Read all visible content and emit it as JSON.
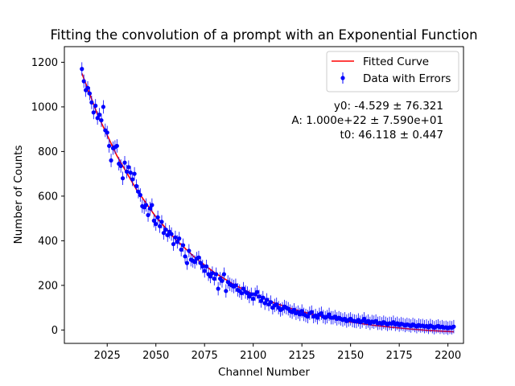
{
  "chart_data": {
    "type": "scatter",
    "title": "Fitting the convolution of a prompt with an Exponential Function",
    "xlabel": "Channel Number",
    "ylabel": "Number of Counts",
    "xlim": [
      2003,
      2208
    ],
    "ylim": [
      -60,
      1270
    ],
    "xticks": [
      2025,
      2050,
      2075,
      2100,
      2125,
      2150,
      2175,
      2200
    ],
    "yticks": [
      0,
      200,
      400,
      600,
      800,
      1000,
      1200
    ],
    "grid": false,
    "legend_position": "top-right",
    "colors": {
      "fit": "#ff0000",
      "data": "#0000ff",
      "errorbar": "#0000ff"
    },
    "annotations": [
      "y0: -4.529 ± 76.321",
      "A: 1.000e+22 ± 7.590e+01",
      "t0: 46.118 ± 0.447"
    ],
    "series": [
      {
        "name": "Fitted Curve",
        "kind": "line",
        "x": [
          2012,
          2020,
          2030,
          2040,
          2050,
          2060,
          2070,
          2080,
          2090,
          2100,
          2110,
          2120,
          2130,
          2140,
          2150,
          2160,
          2170,
          2180,
          2190,
          2203
        ],
        "y": [
          1150,
          966,
          781,
          630,
          507,
          407,
          325,
          258,
          204,
          160,
          124,
          95,
          71,
          52,
          36,
          23,
          13,
          5,
          -2,
          -8
        ]
      },
      {
        "name": "Data with Errors",
        "kind": "errorbar",
        "x": [
          2012,
          2013,
          2014,
          2015,
          2016,
          2017,
          2018,
          2019,
          2020,
          2021,
          2022,
          2023,
          2024,
          2025,
          2026,
          2027,
          2028,
          2029,
          2030,
          2031,
          2032,
          2033,
          2034,
          2035,
          2036,
          2037,
          2038,
          2039,
          2040,
          2041,
          2042,
          2043,
          2044,
          2045,
          2046,
          2047,
          2048,
          2049,
          2050,
          2051,
          2052,
          2053,
          2054,
          2055,
          2056,
          2057,
          2058,
          2059,
          2060,
          2061,
          2062,
          2063,
          2064,
          2065,
          2066,
          2067,
          2068,
          2069,
          2070,
          2071,
          2072,
          2073,
          2074,
          2075,
          2076,
          2077,
          2078,
          2079,
          2080,
          2081,
          2082,
          2083,
          2084,
          2085,
          2086,
          2087,
          2088,
          2089,
          2090,
          2091,
          2092,
          2093,
          2094,
          2095,
          2096,
          2097,
          2098,
          2099,
          2100,
          2101,
          2102,
          2103,
          2104,
          2105,
          2106,
          2107,
          2108,
          2109,
          2110,
          2111,
          2112,
          2113,
          2114,
          2115,
          2116,
          2117,
          2118,
          2119,
          2120,
          2121,
          2122,
          2123,
          2124,
          2125,
          2126,
          2127,
          2128,
          2129,
          2130,
          2131,
          2132,
          2133,
          2134,
          2135,
          2136,
          2137,
          2138,
          2139,
          2140,
          2141,
          2142,
          2143,
          2144,
          2145,
          2146,
          2147,
          2148,
          2149,
          2150,
          2151,
          2152,
          2153,
          2154,
          2155,
          2156,
          2157,
          2158,
          2159,
          2160,
          2161,
          2162,
          2163,
          2164,
          2165,
          2166,
          2167,
          2168,
          2169,
          2170,
          2171,
          2172,
          2173,
          2174,
          2175,
          2176,
          2177,
          2178,
          2179,
          2180,
          2181,
          2182,
          2183,
          2184,
          2185,
          2186,
          2187,
          2188,
          2189,
          2190,
          2191,
          2192,
          2193,
          2194,
          2195,
          2196,
          2197,
          2198,
          2199,
          2200,
          2201,
          2202,
          2203
        ],
        "y": [
          1170,
          1115,
          1075,
          1085,
          1060,
          1020,
          975,
          1005,
          950,
          965,
          940,
          1000,
          895,
          885,
          825,
          760,
          815,
          820,
          825,
          745,
          735,
          680,
          750,
          710,
          730,
          705,
          675,
          700,
          645,
          620,
          605,
          555,
          550,
          560,
          515,
          545,
          560,
          490,
          475,
          505,
          465,
          485,
          435,
          450,
          425,
          440,
          430,
          385,
          415,
          395,
          410,
          360,
          380,
          330,
          300,
          355,
          315,
          310,
          305,
          320,
          325,
          300,
          285,
          265,
          285,
          250,
          240,
          255,
          230,
          250,
          185,
          230,
          220,
          250,
          175,
          215,
          205,
          200,
          195,
          200,
          180,
          175,
          165,
          185,
          170,
          165,
          150,
          160,
          140,
          160,
          170,
          150,
          130,
          145,
          120,
          135,
          115,
          125,
          100,
          110,
          115,
          100,
          90,
          95,
          105,
          100,
          95,
          85,
          80,
          90,
          75,
          80,
          70,
          85,
          70,
          65,
          60,
          75,
          80,
          60,
          65,
          55,
          70,
          75,
          60,
          55,
          60,
          70,
          55,
          55,
          60,
          50,
          55,
          50,
          45,
          50,
          40,
          45,
          50,
          42,
          40,
          38,
          45,
          35,
          40,
          50,
          35,
          40,
          30,
          38,
          35,
          40,
          30,
          32,
          28,
          35,
          30,
          25,
          30,
          28,
          35,
          25,
          30,
          22,
          28,
          25,
          20,
          25,
          22,
          18,
          25,
          20,
          15,
          22,
          18,
          20,
          15,
          18,
          12,
          20,
          15,
          10,
          15,
          18,
          12,
          15,
          10,
          12,
          8,
          12,
          10,
          15
        ],
        "yerr": 30
      }
    ]
  }
}
